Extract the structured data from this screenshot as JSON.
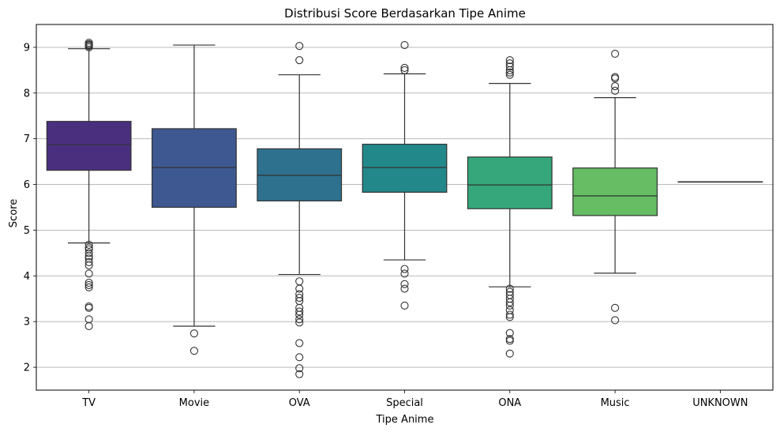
{
  "chart_data": {
    "type": "box",
    "title": "Distribusi Score Berdasarkan Tipe Anime",
    "xlabel": "Tipe Anime",
    "ylabel": "Score",
    "ylim": [
      1.5,
      9.5
    ],
    "yticks": [
      2,
      3,
      4,
      5,
      6,
      7,
      8,
      9
    ],
    "grid": "horizontal",
    "categories": [
      "TV",
      "Movie",
      "OVA",
      "Special",
      "ONA",
      "Music",
      "UNKNOWN"
    ],
    "colors": [
      "#4a2f7f",
      "#3e5891",
      "#2e718e",
      "#23888a",
      "#35a77a",
      "#66bd63",
      "#9fd64a"
    ],
    "boxes": [
      {
        "whislo": 4.72,
        "q1": 6.31,
        "med": 6.87,
        "q3": 7.38,
        "whishi": 8.97,
        "fliers": [
          9.0,
          9.03,
          9.05,
          9.07,
          9.1,
          4.68,
          4.62,
          4.58,
          4.5,
          4.43,
          4.38,
          4.3,
          4.23,
          4.05,
          3.85,
          3.8,
          3.75,
          3.33,
          3.3,
          3.05,
          2.9
        ]
      },
      {
        "whislo": 2.9,
        "q1": 5.5,
        "med": 6.37,
        "q3": 7.22,
        "whishi": 9.05,
        "fliers": [
          2.74,
          2.36
        ]
      },
      {
        "whislo": 4.03,
        "q1": 5.64,
        "med": 6.2,
        "q3": 6.78,
        "whishi": 8.4,
        "fliers": [
          9.03,
          8.72,
          3.88,
          3.72,
          3.6,
          3.52,
          3.45,
          3.3,
          3.22,
          3.15,
          3.05,
          2.98,
          2.53,
          2.22,
          1.98,
          1.85
        ]
      },
      {
        "whislo": 4.35,
        "q1": 5.83,
        "med": 6.37,
        "q3": 6.88,
        "whishi": 8.42,
        "fliers": [
          9.05,
          8.55,
          8.5,
          4.15,
          4.05,
          3.82,
          3.72,
          3.35
        ]
      },
      {
        "whislo": 3.76,
        "q1": 5.47,
        "med": 5.99,
        "q3": 6.6,
        "whishi": 8.21,
        "fliers": [
          8.72,
          8.65,
          8.58,
          8.5,
          8.45,
          8.4,
          3.72,
          3.65,
          3.58,
          3.5,
          3.42,
          3.35,
          3.25,
          3.15,
          3.1,
          2.75,
          2.62,
          2.58,
          2.3
        ]
      },
      {
        "whislo": 4.06,
        "q1": 5.32,
        "med": 5.75,
        "q3": 6.36,
        "whishi": 7.9,
        "fliers": [
          8.86,
          8.35,
          8.32,
          8.15,
          8.05,
          3.3,
          3.03
        ]
      },
      {
        "whislo": 6.06,
        "q1": 6.06,
        "med": 6.06,
        "q3": 6.06,
        "whishi": 6.06,
        "fliers": []
      }
    ]
  }
}
